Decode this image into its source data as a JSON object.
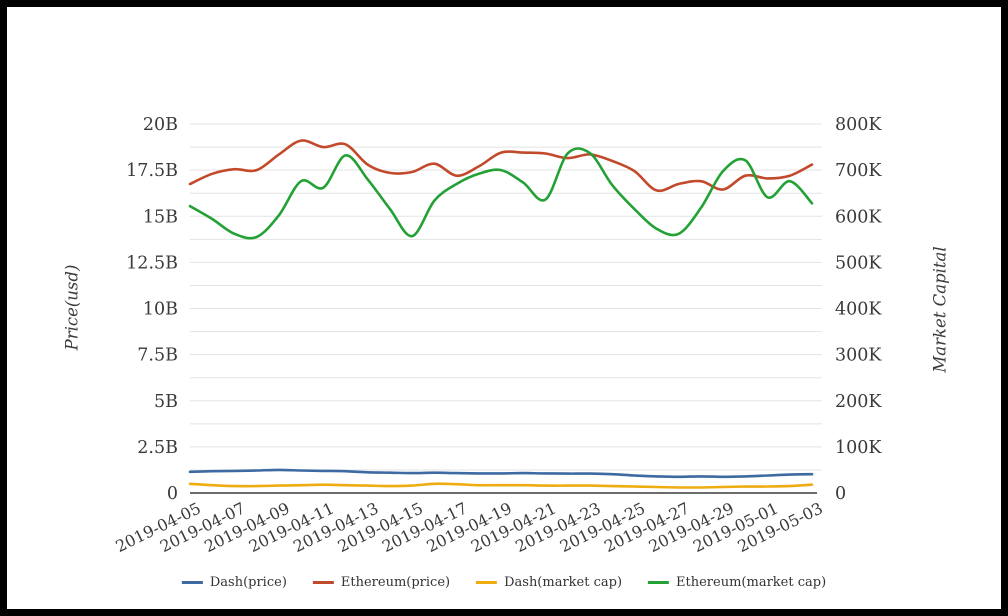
{
  "chart_data": {
    "type": "line",
    "title": "",
    "x": [
      "2019-04-05",
      "2019-04-06",
      "2019-04-07",
      "2019-04-08",
      "2019-04-09",
      "2019-04-10",
      "2019-04-11",
      "2019-04-12",
      "2019-04-13",
      "2019-04-14",
      "2019-04-15",
      "2019-04-16",
      "2019-04-17",
      "2019-04-18",
      "2019-04-19",
      "2019-04-20",
      "2019-04-21",
      "2019-04-22",
      "2019-04-23",
      "2019-04-24",
      "2019-04-25",
      "2019-04-26",
      "2019-04-27",
      "2019-04-28",
      "2019-04-29",
      "2019-04-30",
      "2019-05-01",
      "2019-05-02",
      "2019-05-03"
    ],
    "x_tick_labels": [
      "2019-04-05",
      "2019-04-07",
      "2019-04-09",
      "2019-04-11",
      "2019-04-13",
      "2019-04-15",
      "2019-04-17",
      "2019-04-19",
      "2019-04-21",
      "2019-04-23",
      "2019-04-25",
      "2019-04-27",
      "2019-04-29",
      "2019-05-01",
      "2019-05-03"
    ],
    "left_axis": {
      "label": "Price(usd)",
      "unit": "USD billions",
      "tick_labels": [
        "0",
        "2.5B",
        "5B",
        "7.5B",
        "10B",
        "12.5B",
        "15B",
        "17.5B",
        "20B"
      ],
      "tick_values": [
        0,
        2.5,
        5,
        7.5,
        10,
        12.5,
        15,
        17.5,
        20
      ],
      "range": [
        0,
        20
      ]
    },
    "right_axis": {
      "label": "Market Capital",
      "unit": "thousands",
      "tick_labels": [
        "0",
        "100K",
        "200K",
        "300K",
        "400K",
        "500K",
        "600K",
        "700K",
        "800K"
      ],
      "tick_values": [
        0,
        100,
        200,
        300,
        400,
        500,
        600,
        700,
        800
      ],
      "range": [
        0,
        800
      ]
    },
    "grid": true,
    "minor_grid_step_left": 1.25,
    "legend_position": "bottom",
    "series": [
      {
        "name": "Dash(price)",
        "axis": "left",
        "color": "#3d6aa2",
        "values": [
          1.15,
          1.18,
          1.2,
          1.22,
          1.25,
          1.22,
          1.2,
          1.18,
          1.12,
          1.1,
          1.08,
          1.1,
          1.08,
          1.06,
          1.06,
          1.08,
          1.06,
          1.05,
          1.05,
          1.02,
          0.95,
          0.9,
          0.88,
          0.9,
          0.88,
          0.9,
          0.95,
          1.0,
          1.02
        ]
      },
      {
        "name": "Ethereum(price)",
        "axis": "left",
        "color": "#c3492b",
        "values": [
          16.75,
          17.3,
          17.55,
          17.5,
          18.35,
          19.1,
          18.75,
          18.9,
          17.8,
          17.35,
          17.4,
          17.85,
          17.2,
          17.7,
          18.45,
          18.45,
          18.4,
          18.15,
          18.35,
          18.0,
          17.45,
          16.4,
          16.75,
          16.9,
          16.45,
          17.2,
          17.05,
          17.2,
          17.8
        ]
      },
      {
        "name": "Dash(market cap)",
        "axis": "right",
        "color": "#eeac10",
        "values": [
          20,
          17,
          15,
          15,
          16,
          17,
          18,
          17,
          16,
          15,
          16,
          20,
          19,
          17,
          17,
          17,
          16,
          16,
          16,
          15,
          14,
          13,
          12,
          12,
          13,
          14,
          14,
          15,
          18
        ]
      },
      {
        "name": "Ethereum(market cap)",
        "axis": "right",
        "color": "#23a135",
        "values": [
          622,
          594,
          562,
          555,
          602,
          676,
          662,
          732,
          680,
          616,
          557,
          634,
          670,
          692,
          700,
          673,
          636,
          736,
          737,
          668,
          616,
          573,
          562,
          618,
          698,
          721,
          641,
          676,
          628
        ]
      }
    ]
  },
  "colors": {
    "grid": "#e3e3e3",
    "axis_line": "#3c3c3c",
    "tick_text": "#3a3a3a",
    "background": "#ffffff",
    "frame": "#000000"
  }
}
